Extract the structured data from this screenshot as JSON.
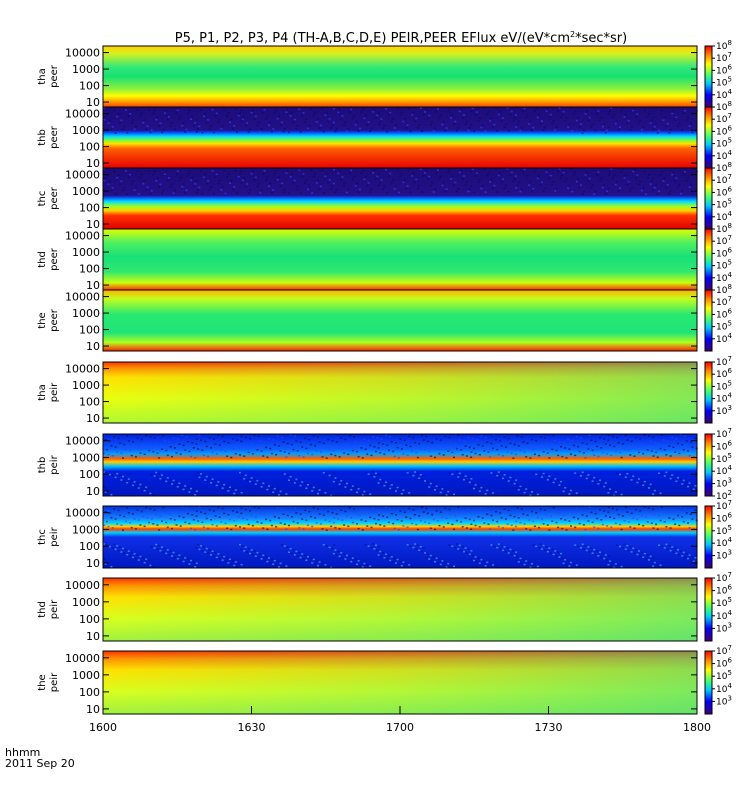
{
  "page": {
    "title": "P5, P1, P2, P3, P4 (TH-A,B,C,D,E) PEIR,PEER EFlux eV/(eV*cm",
    "title_sup": "2",
    "title_tail": "*sec*sr)",
    "time_label": "hhmm",
    "date_label": "2011 Sep 20"
  },
  "chart_data": {
    "type": "heatmap",
    "title": "P5, P1, P2, P3, P4 (TH-A,B,C,D,E) PEIR,PEER EFlux eV/(eV*cm2*sec*sr)",
    "x_ticks": [
      "1600",
      "1630",
      "1700",
      "1730",
      "1800"
    ],
    "x_range_hhmm": [
      "1600",
      "1800"
    ],
    "y_scale": "log",
    "y_ticks": [
      "10",
      "100",
      "1000",
      "10000"
    ],
    "colormap": [
      "#000080",
      "#0000ff",
      "#00c0ff",
      "#00ff80",
      "#ffff00",
      "#ff8000",
      "#ff0000"
    ],
    "panels": [
      {
        "probe": "tha",
        "product": "peer",
        "ylabel": [
          "tha",
          "peer"
        ],
        "colorbar_exponents": [
          "4",
          "5",
          "6",
          "7",
          "8"
        ],
        "colorbar_range": [
          3,
          8
        ]
      },
      {
        "probe": "thb",
        "product": "peer",
        "ylabel": [
          "thb",
          "peer"
        ],
        "colorbar_exponents": [
          "4",
          "5",
          "6",
          "7",
          "8"
        ],
        "colorbar_range": [
          3,
          8
        ]
      },
      {
        "probe": "thc",
        "product": "peer",
        "ylabel": [
          "thc",
          "peer"
        ],
        "colorbar_exponents": [
          "4",
          "5",
          "6",
          "7",
          "8"
        ],
        "colorbar_range": [
          3,
          8
        ]
      },
      {
        "probe": "thd",
        "product": "peer",
        "ylabel": [
          "thd",
          "peer"
        ],
        "colorbar_exponents": [
          "4",
          "5",
          "6",
          "7",
          "8"
        ],
        "colorbar_range": [
          3,
          8
        ]
      },
      {
        "probe": "the",
        "product": "peer",
        "ylabel": [
          "the",
          "peer"
        ],
        "colorbar_exponents": [
          "4",
          "5",
          "6",
          "7",
          "8"
        ],
        "colorbar_range": [
          3,
          8
        ]
      },
      {
        "probe": "tha",
        "product": "peir",
        "ylabel": [
          "tha",
          "peir"
        ],
        "colorbar_exponents": [
          "3",
          "4",
          "5",
          "6",
          "7"
        ],
        "colorbar_range": [
          2,
          7
        ]
      },
      {
        "probe": "thb",
        "product": "peir",
        "ylabel": [
          "thb",
          "peir"
        ],
        "colorbar_exponents": [
          "2",
          "3",
          "4",
          "5",
          "6",
          "7"
        ],
        "colorbar_range": [
          2,
          7
        ]
      },
      {
        "probe": "thc",
        "product": "peir",
        "ylabel": [
          "thc",
          "peir"
        ],
        "colorbar_exponents": [
          "3",
          "4",
          "5",
          "6",
          "7"
        ],
        "colorbar_range": [
          2,
          7
        ]
      },
      {
        "probe": "thd",
        "product": "peir",
        "ylabel": [
          "thd",
          "peir"
        ],
        "colorbar_exponents": [
          "3",
          "4",
          "5",
          "6",
          "7"
        ],
        "colorbar_range": [
          2,
          7
        ]
      },
      {
        "probe": "the",
        "product": "peir",
        "ylabel": [
          "the",
          "peir"
        ],
        "colorbar_exponents": [
          "3",
          "4",
          "5",
          "6",
          "7"
        ],
        "colorbar_range": [
          2,
          7
        ]
      }
    ]
  }
}
